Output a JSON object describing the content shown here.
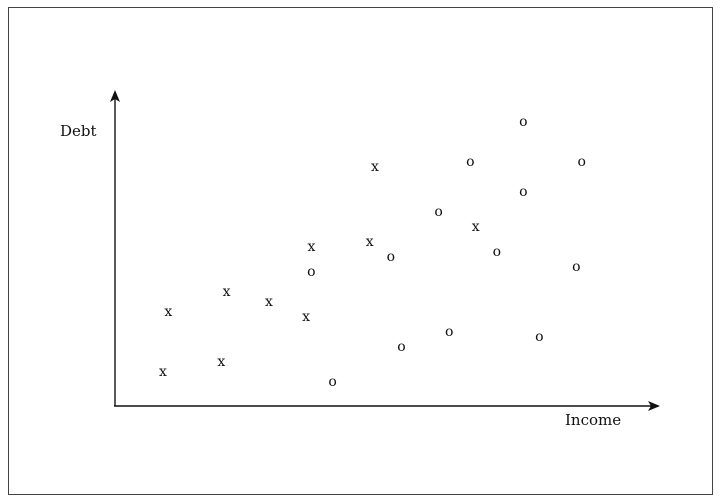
{
  "chart_data": {
    "type": "scatter",
    "title": "",
    "xlabel": "Income",
    "ylabel": "Debt",
    "grid": false,
    "legend": "none",
    "series": [
      {
        "marker": "x",
        "points": [
          [
            1.0,
            0.8
          ],
          [
            2.1,
            1.0
          ],
          [
            1.1,
            2.0
          ],
          [
            2.2,
            2.4
          ],
          [
            3.0,
            2.2
          ],
          [
            3.7,
            1.9
          ],
          [
            3.8,
            3.3
          ],
          [
            4.9,
            3.4
          ],
          [
            5.0,
            4.9
          ],
          [
            6.9,
            3.7
          ]
        ]
      },
      {
        "marker": "o",
        "points": [
          [
            4.2,
            0.6
          ],
          [
            5.5,
            1.3
          ],
          [
            6.4,
            1.6
          ],
          [
            8.1,
            1.5
          ],
          [
            3.8,
            2.8
          ],
          [
            5.3,
            3.1
          ],
          [
            6.2,
            4.0
          ],
          [
            7.3,
            3.2
          ],
          [
            8.8,
            2.9
          ],
          [
            6.8,
            5.0
          ],
          [
            7.8,
            4.4
          ],
          [
            8.9,
            5.0
          ],
          [
            7.8,
            5.8
          ]
        ]
      }
    ]
  }
}
